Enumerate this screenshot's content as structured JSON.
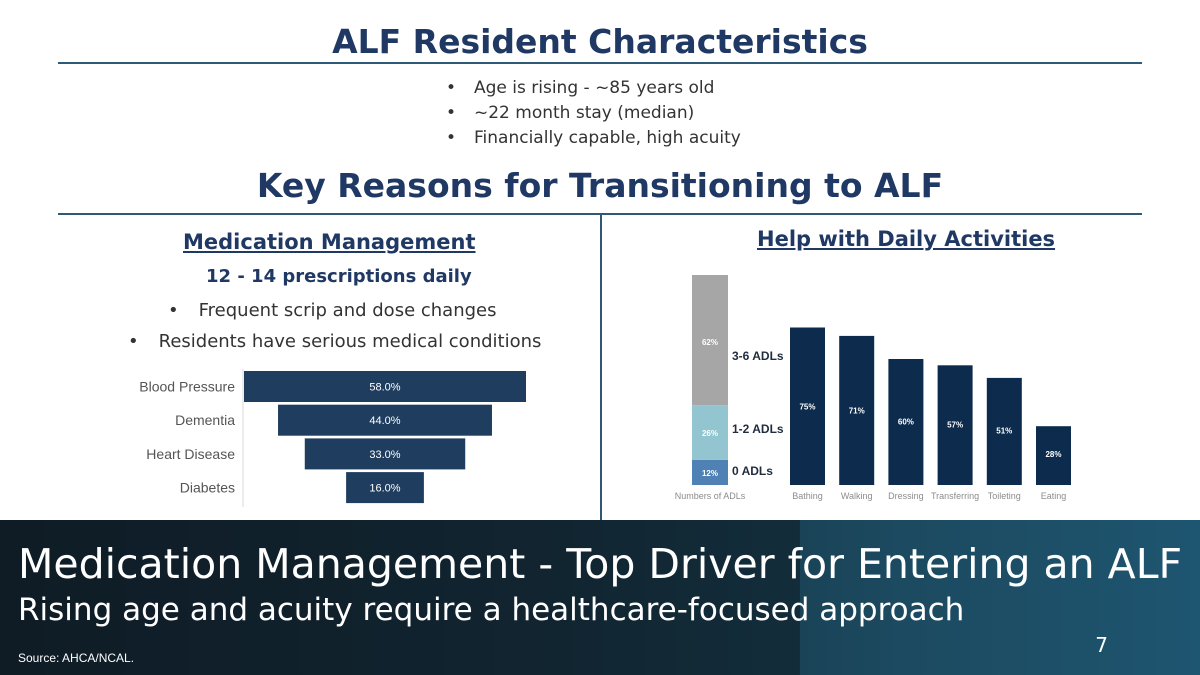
{
  "header": {
    "title": "ALF Resident Characteristics",
    "bullets": [
      "Age is rising - ~85 years old",
      "~22 month stay (median)",
      "Financially capable, high acuity"
    ]
  },
  "section": {
    "title": "Key Reasons for Transitioning to ALF"
  },
  "left": {
    "subtitle": "Medication Management",
    "highlight": "12 - 14 prescriptions daily",
    "bullets": [
      "Frequent scrip and dose changes",
      "Residents have serious medical conditions"
    ]
  },
  "right": {
    "subtitle": "Help with Daily Activities"
  },
  "banner": {
    "title": "Medication Management - Top Driver for Entering an ALF",
    "subtitle": "Rising age and acuity require a healthcare-focused approach",
    "page_number": "7",
    "source": "Source: AHCA/NCAL."
  },
  "chart_data": [
    {
      "type": "bar",
      "orientation": "horizontal",
      "categories": [
        "Blood Pressure",
        "Dementia",
        "Heart Disease",
        "Diabetes"
      ],
      "values": [
        58.0,
        44.0,
        33.0,
        16.0
      ],
      "data_labels": [
        "58.0%",
        "44.0%",
        "33.0%",
        "16.0%"
      ],
      "color": "#1f3d5f"
    },
    {
      "type": "bar",
      "categories": [
        "Bathing",
        "Walking",
        "Dressing",
        "Transferring",
        "Toileting",
        "Eating"
      ],
      "values": [
        75,
        71,
        60,
        57,
        51,
        28
      ],
      "data_labels": [
        "75%",
        "71%",
        "60%",
        "57%",
        "51%",
        "28%"
      ],
      "color": "#0d2b4d",
      "stacked_bar": {
        "category": "Numbers of ADLs",
        "segments": [
          {
            "name": "0 ADLs",
            "value": 12,
            "label": "12%",
            "color": "#4f81b5"
          },
          {
            "name": "1-2 ADLs",
            "value": 26,
            "label": "26%",
            "color": "#92c5cf"
          },
          {
            "name": "3-6 ADLs",
            "value": 62,
            "label": "62%",
            "color": "#a6a6a6"
          }
        ]
      }
    }
  ]
}
